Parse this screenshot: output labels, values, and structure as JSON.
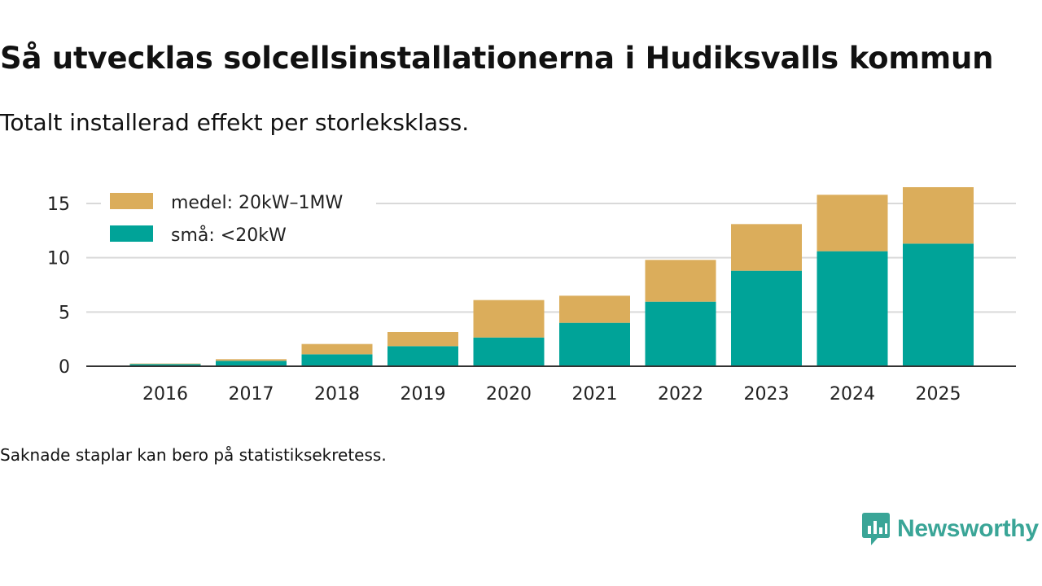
{
  "header": {
    "title": "Så utvecklas solcellsinstallationerna i Hudiksvalls kommun",
    "subtitle": "Totalt installerad effekt per storleksklass."
  },
  "footer": {
    "note": "Saknade staplar kan bero på statistiksekretess.",
    "brand": "Newsworthy"
  },
  "colors": {
    "small": "#00a398",
    "medium": "#dbad5b",
    "grid": "#d9d9d9",
    "axis": "#333333",
    "brand": "#3aa597"
  },
  "chart_data": {
    "type": "bar",
    "stacked": true,
    "title": "Så utvecklas solcellsinstallationerna i Hudiksvalls kommun",
    "xlabel": "",
    "ylabel": "",
    "ylim": [
      0,
      16.5
    ],
    "yticks": [
      0,
      5,
      10,
      15
    ],
    "grid": true,
    "legend_position": "top-left",
    "categories": [
      "2016",
      "2017",
      "2018",
      "2019",
      "2020",
      "2021",
      "2022",
      "2023",
      "2024",
      "2025"
    ],
    "series": [
      {
        "name": "små: <20kW",
        "color": "#00a398",
        "values": [
          0.2,
          0.5,
          1.1,
          1.85,
          2.65,
          4.0,
          5.95,
          8.8,
          10.6,
          11.3
        ]
      },
      {
        "name": "medel: 20kW–1MW",
        "color": "#dbad5b",
        "values": [
          0.05,
          0.15,
          0.95,
          1.3,
          3.45,
          2.5,
          3.85,
          4.3,
          5.2,
          5.2
        ]
      }
    ]
  }
}
